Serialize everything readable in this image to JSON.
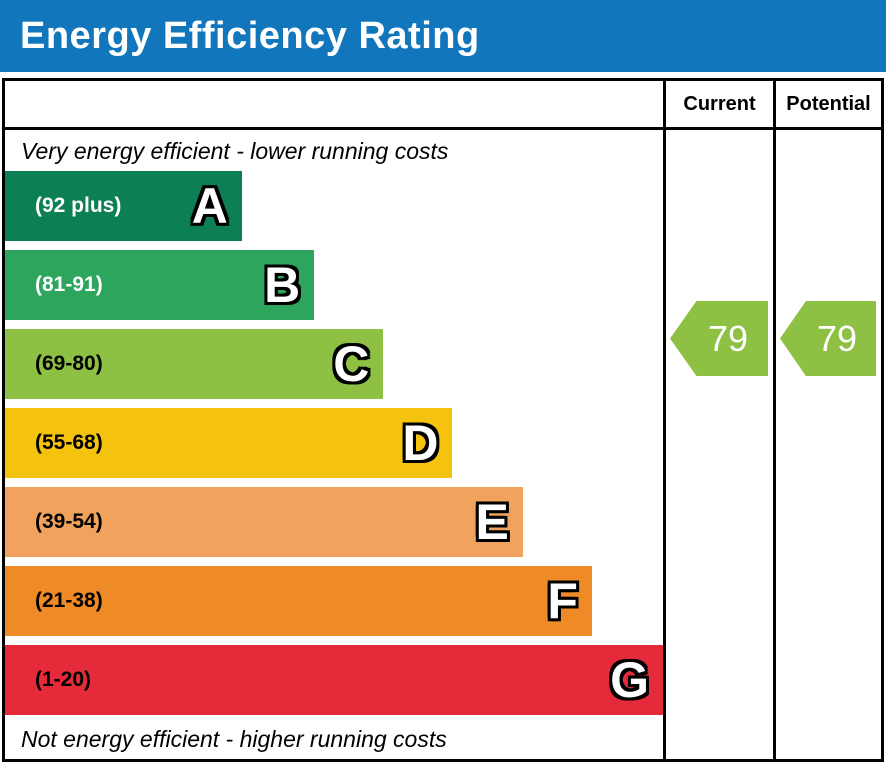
{
  "title": "Energy Efficiency Rating",
  "colors": {
    "header_bar": "#1176bc",
    "header_text": "#ffffff",
    "border": "#000000",
    "arrow": "#8dc043",
    "arrow_text": "#ffffff"
  },
  "columns": {
    "current": "Current",
    "potential": "Potential"
  },
  "notes": {
    "top": "Very energy efficient - lower running costs",
    "bottom": "Not energy efficient - higher running costs"
  },
  "bands": [
    {
      "letter": "A",
      "range": "(92 plus)",
      "color": "#0c8054",
      "label_color": "#ffffff",
      "width_pct": 36
    },
    {
      "letter": "B",
      "range": "(81-91)",
      "color": "#2ea55c",
      "label_color": "#ffffff",
      "width_pct": 47
    },
    {
      "letter": "C",
      "range": "(69-80)",
      "color": "#8dc043",
      "label_color": "#000000",
      "width_pct": 57.5
    },
    {
      "letter": "D",
      "range": "(55-68)",
      "color": "#f5c20d",
      "label_color": "#000000",
      "width_pct": 68
    },
    {
      "letter": "E",
      "range": "(39-54)",
      "color": "#f1a35e",
      "label_color": "#000000",
      "width_pct": 78.7
    },
    {
      "letter": "F",
      "range": "(21-38)",
      "color": "#ee8b27",
      "label_color": "#000000",
      "width_pct": 89.2
    },
    {
      "letter": "G",
      "range": "(1-20)",
      "color": "#e52a39",
      "label_color": "#000000",
      "width_pct": 100
    }
  ],
  "ratings": {
    "current": {
      "value": "79",
      "band": "C",
      "color": "#8dc043"
    },
    "potential": {
      "value": "79",
      "band": "C",
      "color": "#8dc043"
    }
  },
  "chart_data": {
    "type": "bar",
    "title": "Energy Efficiency Rating",
    "orientation": "horizontal",
    "categories": [
      "A",
      "B",
      "C",
      "D",
      "E",
      "F",
      "G"
    ],
    "band_ranges": [
      "92 plus",
      "81-91",
      "69-80",
      "55-68",
      "39-54",
      "21-38",
      "1-20"
    ],
    "band_colors": [
      "#0c8054",
      "#2ea55c",
      "#8dc043",
      "#f5c20d",
      "#f1a35e",
      "#ee8b27",
      "#e52a39"
    ],
    "bar_lengths_pct": [
      36,
      47,
      57.5,
      68,
      78.7,
      89.2,
      100
    ],
    "series": [
      {
        "name": "Current",
        "values": [
          79
        ]
      },
      {
        "name": "Potential",
        "values": [
          79
        ]
      }
    ],
    "value_range": [
      1,
      100
    ],
    "annotations": [
      "Very energy efficient - lower running costs",
      "Not energy efficient - higher running costs"
    ],
    "legend_position": "none",
    "grid": false
  }
}
